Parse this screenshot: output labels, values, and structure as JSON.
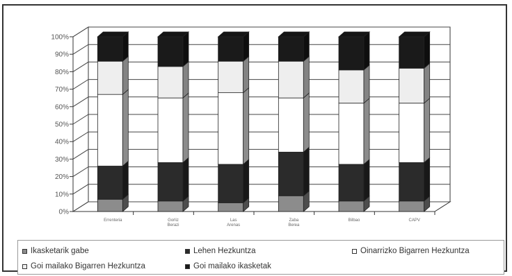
{
  "chart_data": {
    "type": "bar",
    "stacked": true,
    "percent": true,
    "three_d": true,
    "categories": [
      "Errenteria",
      "Gorliz Berazi",
      "Las Arenas",
      "Zaba Berea",
      "Bilbao",
      "CAPV"
    ],
    "y_ticks": [
      "0%",
      "10%",
      "20%",
      "30%",
      "40%",
      "50%",
      "60%",
      "70%",
      "80%",
      "90%",
      "100%"
    ],
    "ylim": [
      0,
      100
    ],
    "grid": true,
    "legend_position": "bottom",
    "series": [
      {
        "name": "Ikasketarik gabe",
        "color": "#8c8c8c",
        "values": [
          7,
          6,
          5,
          9,
          6,
          6
        ]
      },
      {
        "name": "Lehen Hezkuntza",
        "color": "#2b2b2b",
        "values": [
          19,
          22,
          22,
          25,
          21,
          22
        ]
      },
      {
        "name": "Oinarrizko Bigarren Hezkuntza",
        "color": "#ffffff",
        "values": [
          41,
          37,
          41,
          31,
          35,
          34
        ]
      },
      {
        "name": "Goi mailako Bigarren Hezkuntza",
        "color": "#eeeeee",
        "values": [
          19,
          18,
          18,
          21,
          19,
          20
        ]
      },
      {
        "name": "Goi mailako ikasketak",
        "color": "#1a1a1a",
        "values": [
          14,
          17,
          14,
          14,
          19,
          18
        ]
      }
    ]
  }
}
